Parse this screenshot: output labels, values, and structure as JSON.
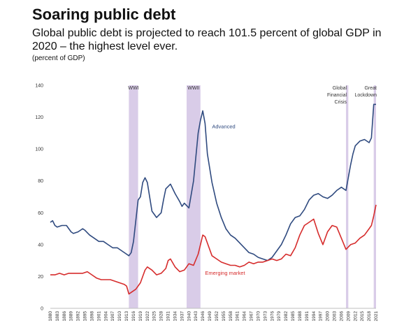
{
  "header": {
    "title": "Soaring public debt",
    "subtitle": "Global public debt is projected to reach 101.5 percent of global GDP in 2020 – the highest level ever.",
    "units": "(percent of GDP)"
  },
  "chart_data": {
    "type": "line",
    "title": "Soaring public debt",
    "ylabel": "(percent of GDP)",
    "ylim": [
      0,
      140
    ],
    "yticks": [
      0,
      20,
      40,
      60,
      80,
      100,
      120,
      140
    ],
    "xlim": [
      1880,
      2021
    ],
    "xticks": [
      1880,
      1883,
      1886,
      1889,
      1892,
      1895,
      1898,
      1901,
      1904,
      1907,
      1910,
      1913,
      1916,
      1919,
      1922,
      1925,
      1928,
      1931,
      1934,
      1937,
      1940,
      1943,
      1946,
      1949,
      1952,
      1955,
      1958,
      1961,
      1964,
      1967,
      1970,
      1973,
      1976,
      1979,
      1982,
      1985,
      1988,
      1991,
      1994,
      1997,
      2000,
      2003,
      2006,
      2009,
      2012,
      2015,
      2018,
      2021
    ],
    "grid": false,
    "colors": {
      "advanced": "#2f4a7f",
      "emerging": "#d62c2c",
      "shade": "#d9cce8"
    },
    "shaded_periods": [
      {
        "label": "WWI",
        "start": 1914,
        "end": 1918
      },
      {
        "label": "WWII",
        "start": 1939,
        "end": 1945
      },
      {
        "label": "Global Financial Crisis",
        "label_lines": [
          "Global",
          "Financial",
          "Crisis"
        ],
        "start": 2008,
        "end": 2009
      },
      {
        "label": "Great Lockdown",
        "label_lines": [
          "Great",
          "Lockdown"
        ],
        "start": 2020,
        "end": 2021
      }
    ],
    "series": [
      {
        "name": "Advanced",
        "x": [
          1880,
          1881,
          1882,
          1883,
          1885,
          1887,
          1889,
          1890,
          1892,
          1894,
          1895,
          1897,
          1899,
          1901,
          1903,
          1905,
          1907,
          1909,
          1911,
          1913,
          1914,
          1915,
          1916,
          1917,
          1918,
          1919,
          1920,
          1921,
          1922,
          1924,
          1926,
          1928,
          1929,
          1930,
          1932,
          1934,
          1936,
          1937,
          1938,
          1940,
          1942,
          1944,
          1945,
          1946,
          1947,
          1948,
          1950,
          1952,
          1954,
          1956,
          1958,
          1960,
          1962,
          1964,
          1966,
          1968,
          1970,
          1972,
          1974,
          1976,
          1978,
          1980,
          1982,
          1984,
          1986,
          1988,
          1990,
          1992,
          1994,
          1996,
          1998,
          2000,
          2002,
          2004,
          2006,
          2008,
          2009,
          2010,
          2011,
          2012,
          2014,
          2016,
          2018,
          2019,
          2020,
          2021
        ],
        "values": [
          54,
          55,
          52,
          51,
          52,
          52,
          48,
          47,
          48,
          50,
          49,
          46,
          44,
          42,
          42,
          40,
          38,
          38,
          36,
          34,
          33,
          35,
          42,
          55,
          68,
          70,
          79,
          82,
          79,
          61,
          57,
          60,
          68,
          75,
          78,
          72,
          67,
          64,
          66,
          63,
          80,
          110,
          118,
          124,
          116,
          97,
          79,
          66,
          57,
          50,
          46,
          44,
          41,
          38,
          35,
          34,
          32,
          31,
          30,
          32,
          36,
          40,
          46,
          53,
          57,
          58,
          62,
          68,
          71,
          72,
          70,
          69,
          71,
          74,
          76,
          74,
          82,
          90,
          97,
          102,
          105,
          106,
          104,
          107,
          128,
          128
        ]
      },
      {
        "name": "Emerging market",
        "x": [
          1880,
          1882,
          1884,
          1886,
          1888,
          1890,
          1892,
          1894,
          1896,
          1898,
          1900,
          1902,
          1904,
          1906,
          1908,
          1910,
          1912,
          1913,
          1914,
          1915,
          1917,
          1919,
          1920,
          1921,
          1922,
          1924,
          1926,
          1928,
          1930,
          1931,
          1932,
          1934,
          1936,
          1938,
          1940,
          1942,
          1944,
          1945,
          1946,
          1947,
          1948,
          1950,
          1952,
          1954,
          1956,
          1958,
          1960,
          1962,
          1964,
          1966,
          1968,
          1970,
          1972,
          1974,
          1976,
          1978,
          1980,
          1982,
          1984,
          1986,
          1988,
          1990,
          1992,
          1994,
          1996,
          1998,
          2000,
          2002,
          2004,
          2006,
          2008,
          2010,
          2012,
          2014,
          2016,
          2018,
          2019,
          2020,
          2021
        ],
        "values": [
          21,
          21,
          22,
          21,
          22,
          22,
          22,
          22,
          23,
          21,
          19,
          18,
          18,
          18,
          17,
          16,
          15,
          14,
          9,
          10,
          12,
          16,
          20,
          24,
          26,
          24,
          21,
          22,
          25,
          30,
          31,
          26,
          23,
          24,
          28,
          27,
          34,
          40,
          46,
          45,
          41,
          33,
          31,
          29,
          28,
          27,
          27,
          26,
          27,
          29,
          28,
          29,
          29,
          30,
          31,
          30,
          31,
          34,
          33,
          38,
          46,
          52,
          54,
          56,
          47,
          40,
          48,
          52,
          51,
          44,
          37,
          40,
          41,
          44,
          46,
          50,
          52,
          58,
          65
        ]
      }
    ],
    "annotations": [
      {
        "text": "Advanced",
        "x": 1950,
        "y": 113,
        "series": "Advanced"
      },
      {
        "text": "Emerging market",
        "x": 1947,
        "y": 21,
        "series": "Emerging market"
      }
    ]
  }
}
